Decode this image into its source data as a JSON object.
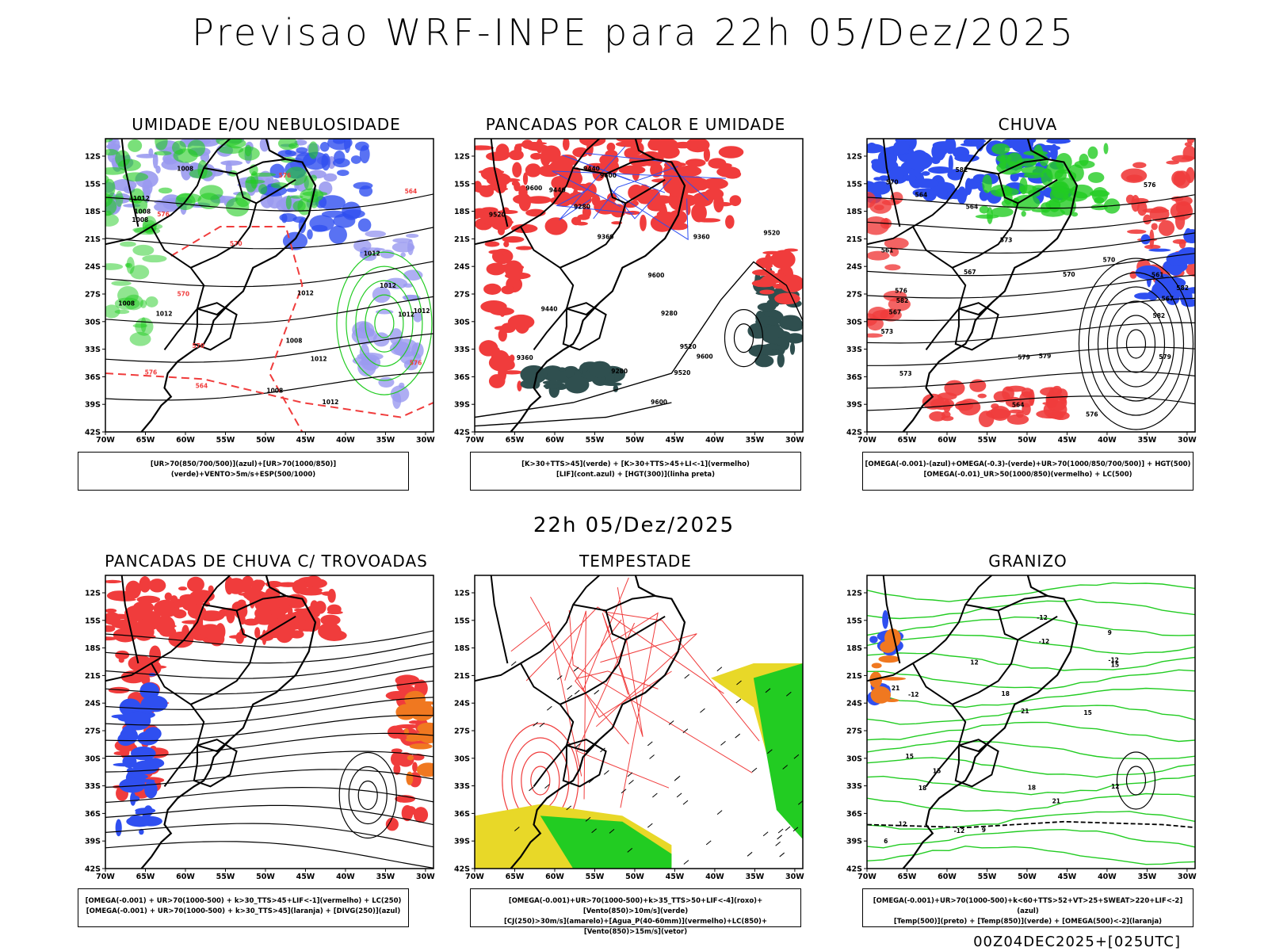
{
  "header": {
    "title": "Previsao WRF-INPE  para 22h 05/Dez/2025"
  },
  "mid_title": "22h 05/Dez/2025",
  "footer": "00Z04DEC2025+[025UTC]",
  "axes": {
    "lat_labels": [
      "12S",
      "15S",
      "18S",
      "21S",
      "24S",
      "27S",
      "30S",
      "33S",
      "36S",
      "39S",
      "42S"
    ],
    "lon_labels": [
      "70W",
      "65W",
      "60W",
      "55W",
      "50W",
      "45W",
      "40W",
      "35W",
      "30W"
    ]
  },
  "colors": {
    "blue": "#2f4ff0",
    "lightblue": "#9a9af0",
    "green": "#22cc22",
    "red": "#f03c3c",
    "darkteal": "#2f4f4f",
    "yellow": "#e8d828",
    "orange": "#f07820"
  },
  "panels": [
    {
      "id": "umidade",
      "title": "UMIDADE E/OU NEBULOSIDADE",
      "legend": [
        "[UR>70(850/700/500)](azul)+[UR>70(1000/850)](verde)+VENTO>5m/s+ESP(500/1000)"
      ],
      "contour_labels": [
        "1012",
        "1012",
        "1008",
        "1012",
        "1008",
        "1012",
        "1012",
        "1008",
        "1012",
        "1012",
        "1008",
        "1012",
        "1008",
        "1008",
        "1012",
        "576",
        "570",
        "576",
        "570",
        "564",
        "576",
        "576",
        "570",
        "564"
      ]
    },
    {
      "id": "pancadas-calor",
      "title": "PANCADAS POR CALOR E UMIDADE",
      "legend": [
        "[K>30+TTS>45](verde) + [K>30+TTS>45+LI<-1](vermelho)",
        "[LIF](cont.azul) + [HGT(300)](linha preta)"
      ],
      "contour_labels": [
        "9600",
        "9600",
        "9600",
        "9600",
        "9520",
        "9520",
        "9600",
        "9520",
        "9440",
        "9360",
        "9280",
        "9520",
        "9440",
        "9360",
        "9280",
        "9440",
        "9360",
        "9280"
      ]
    },
    {
      "id": "chuva",
      "title": "CHUVA",
      "legend": [
        "[OMEGA(-0.001)-(azul)+OMEGA(-0.3)-(verde)+UR>70(1000/850/700/500)] + HGT(500)",
        "[OMEGA(-0.01)_UR>50(1000/850)(vermelho) + LC(500)"
      ],
      "contour_labels": [
        "582",
        "582",
        "582",
        "579",
        "576",
        "573",
        "570",
        "567",
        "564",
        "561",
        "582",
        "579",
        "576",
        "573",
        "570",
        "567",
        "564",
        "561",
        "579",
        "576",
        "573",
        "570",
        "567",
        "564"
      ]
    },
    {
      "id": "trovoadas",
      "title": "PANCADAS DE CHUVA C/ TROVOADAS",
      "legend": [
        "[OMEGA(-0.001) + UR>70(1000-500) + k>30_TTS>45+LIF<-1](vermelho) + LC(250)",
        "[OMEGA(-0.001) + UR>70(1000-500) + k>30_TTS>45](laranja) + [DIVG(250)](azul)"
      ],
      "contour_labels": []
    },
    {
      "id": "tempestade",
      "title": "TEMPESTADE",
      "legend": [
        "[OMEGA(-0.001)+UR>70(1000-500)+k>35_TTS>50+LIF<-4](roxo)+[Vento(850)>10m/s](verde)",
        "[CJ(250)>30m/s](amarelo)+[Agua_P(40-60mm)](vermelho)+LC(850)+[Vento(850)>15m/s](vetor)"
      ],
      "contour_labels": []
    },
    {
      "id": "granizo",
      "title": "GRANIZO",
      "legend": [
        "[OMEGA(-0.001)+UR>70(1000-500)+k<60+TTS>52+VT>25+SWEAT>220+LIF<-2](azul)",
        "[Temp(500)](preto) + [Temp(850)](verde) + [OMEGA(500)<-2](laranja)"
      ],
      "contour_labels": [
        "-12",
        "-12",
        "-12",
        "-12",
        "-12",
        "12",
        "12",
        "12",
        "15",
        "15",
        "15",
        "15",
        "18",
        "18",
        "18",
        "21",
        "21",
        "21",
        "9",
        "9",
        "6"
      ]
    }
  ]
}
